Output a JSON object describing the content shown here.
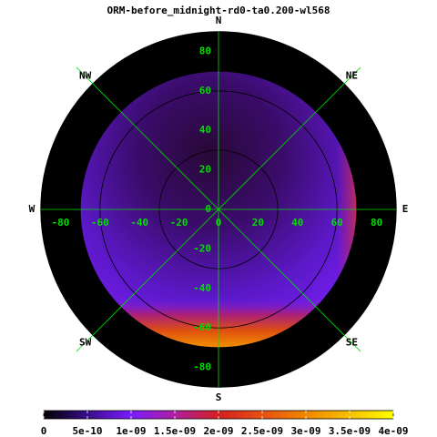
{
  "chart_data": {
    "type": "polar-map",
    "title": "ORM-before_midnight-rd0-ta0.200-wl568",
    "directions": [
      "N",
      "NE",
      "E",
      "SE",
      "S",
      "SW",
      "W",
      "NW"
    ],
    "xlim": [
      -90,
      90
    ],
    "ylim": [
      -90,
      90
    ],
    "xticks": [
      -80,
      -60,
      -40,
      -20,
      0,
      20,
      40,
      60,
      80
    ],
    "yticks": [
      80,
      60,
      40,
      20,
      0,
      -20,
      -40,
      -60,
      -80
    ],
    "rticks": [
      30,
      60,
      90
    ],
    "grid": true,
    "grid_color": "#00dd00",
    "colorbar": {
      "lim": [
        0,
        4e-09
      ],
      "ticks": [
        0,
        {
          "value": 5e-10,
          "label": "5e-10"
        },
        {
          "value": 1e-09,
          "label": "1e-09"
        },
        {
          "value": 1.5e-09,
          "label": "1.5e-09"
        },
        {
          "value": 2e-09,
          "label": "2e-09"
        },
        {
          "value": 2.5e-09,
          "label": "2.5e-09"
        },
        {
          "value": 3e-09,
          "label": "3e-09"
        },
        {
          "value": 3.5e-09,
          "label": "3.5e-09"
        },
        {
          "value": 4e-09,
          "label": "4e-09"
        }
      ],
      "colormap": [
        "#000000",
        "#3a0c8a",
        "#7a1cff",
        "#b01fa0",
        "#d42020",
        "#e85010",
        "#f08800",
        "#f8c000",
        "#ffff00"
      ]
    }
  }
}
